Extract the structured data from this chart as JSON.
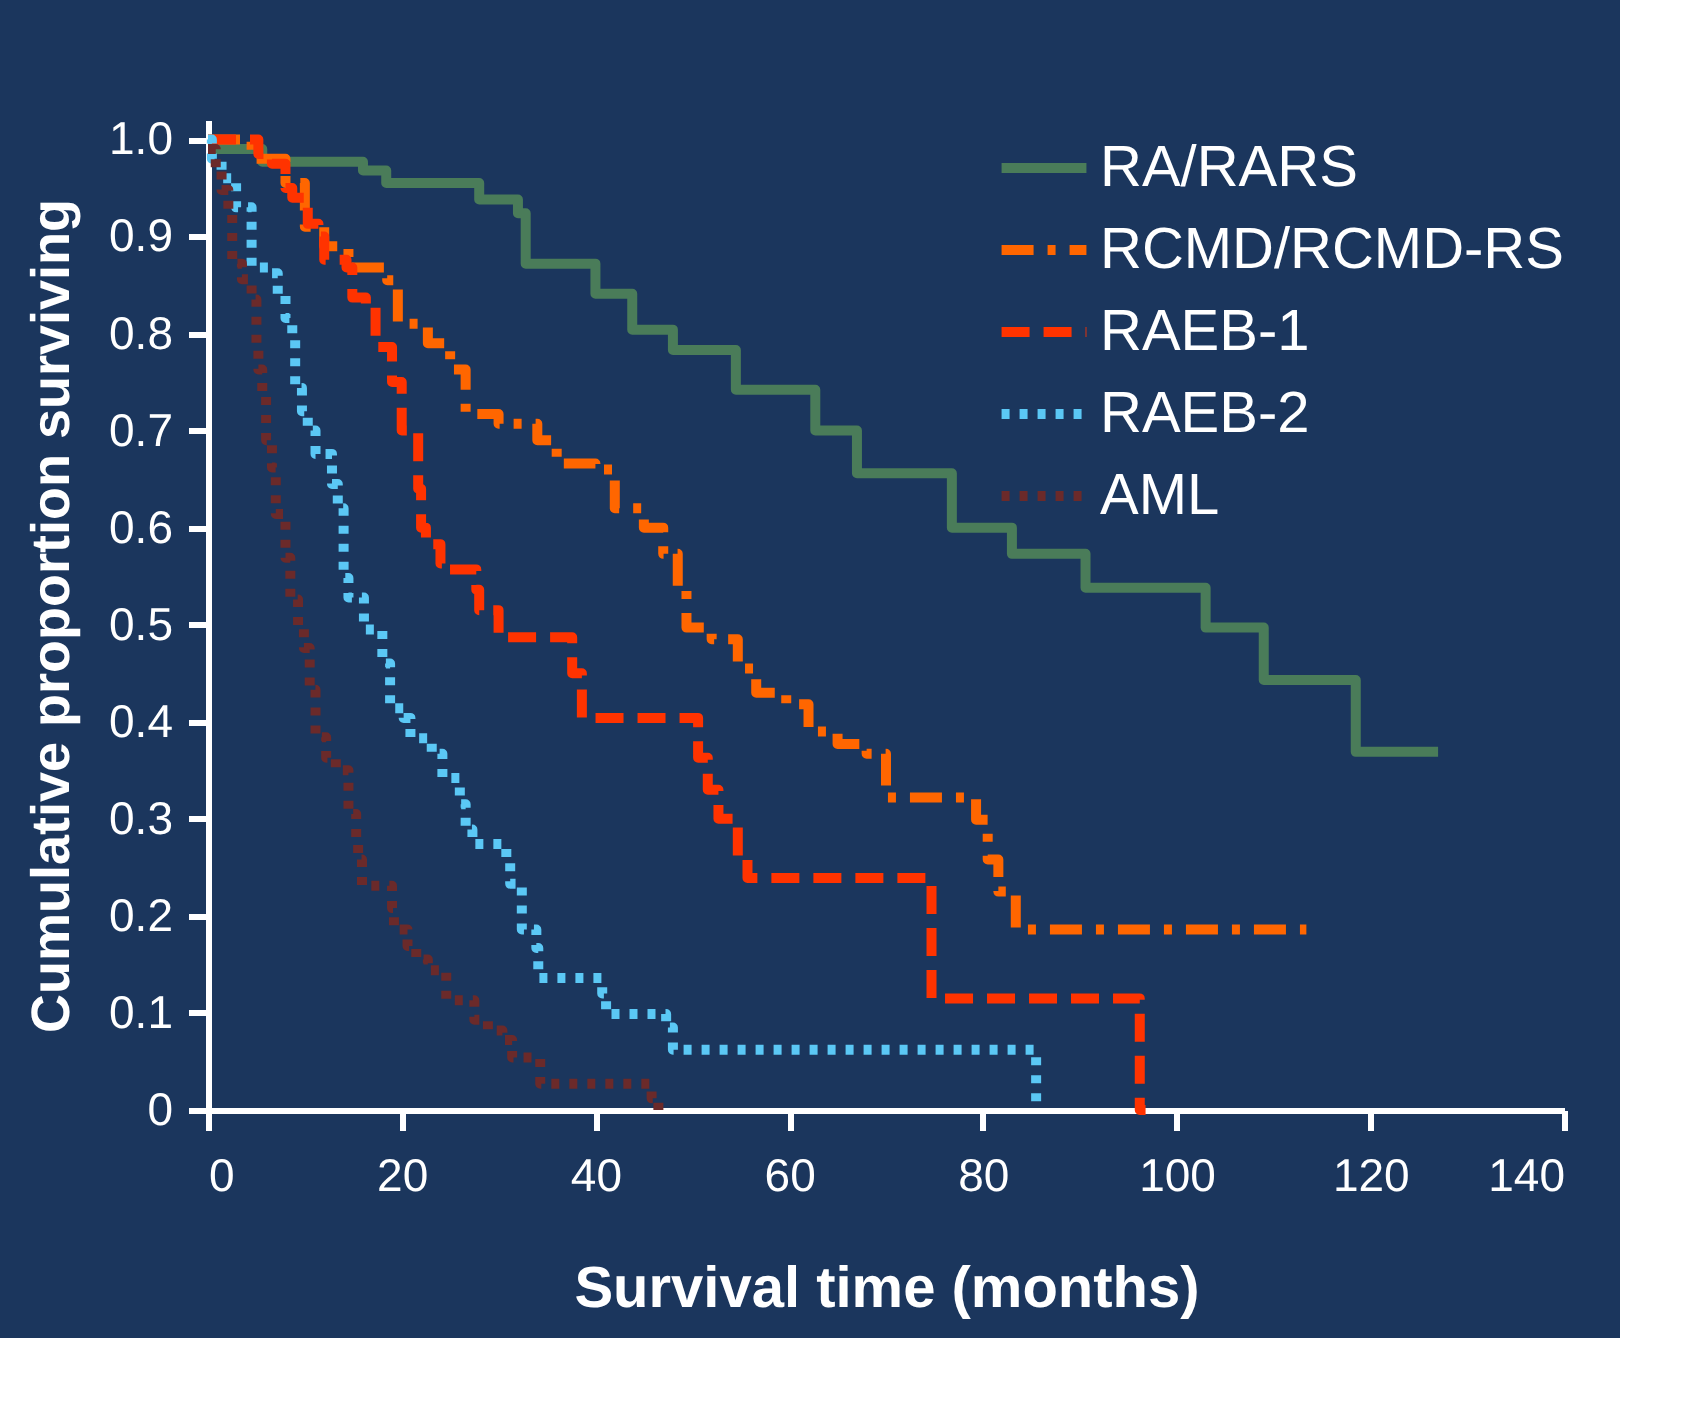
{
  "chart_data": {
    "type": "step",
    "xlabel": "Survival time (months)",
    "ylabel": "Cumulative proportion surviving",
    "xlim": [
      0,
      140
    ],
    "xticks": [
      0,
      20,
      40,
      60,
      80,
      100,
      120,
      140
    ],
    "ylim": [
      0,
      1.02
    ],
    "yticks": [
      {
        "value": 0,
        "label": "0"
      },
      0.1,
      0.2,
      0.3,
      0.4,
      0.5,
      0.6,
      0.7,
      0.8,
      0.9,
      {
        "value": 1,
        "label": "1.0"
      }
    ],
    "grid": false,
    "legend": "top right",
    "marker": "none",
    "series": [
      {
        "name": "RA/RARS",
        "color": "#4a7c59",
        "line_style": "solid",
        "x": [
          0,
          5.6,
          16,
          18.4,
          28,
          32,
          32.8,
          40,
          43.8,
          48,
          54.5,
          62.7,
          67,
          76.8,
          83,
          90.6,
          103,
          109,
          118.5,
          127
        ],
        "values": [
          0.99,
          0.977,
          0.968,
          0.955,
          0.938,
          0.924,
          0.872,
          0.841,
          0.804,
          0.783,
          0.742,
          0.7,
          0.656,
          0.6,
          0.573,
          0.538,
          0.497,
          0.443,
          0.369,
          0.369
        ]
      },
      {
        "name": "RCMD/RCMD-RS",
        "color": "#ff6600",
        "line_style": "dashdot",
        "x": [
          0,
          4.5,
          8,
          10,
          12,
          14.5,
          18.5,
          19.6,
          22.7,
          25,
          26.6,
          30,
          34,
          36,
          40,
          42,
          45,
          47,
          48.5,
          49.4,
          52,
          54.7,
          56.6,
          59.7,
          62,
          65,
          68,
          70,
          79.3,
          80.5,
          81.6,
          83.4,
          113.4
        ],
        "values": [
          1.0,
          0.98,
          0.955,
          0.91,
          0.89,
          0.868,
          0.855,
          0.81,
          0.79,
          0.763,
          0.717,
          0.707,
          0.69,
          0.666,
          0.66,
          0.62,
          0.6,
          0.573,
          0.54,
          0.497,
          0.485,
          0.455,
          0.43,
          0.418,
          0.39,
          0.377,
          0.367,
          0.322,
          0.299,
          0.258,
          0.225,
          0.186,
          0.186
        ]
      },
      {
        "name": "RAEB-1",
        "color": "#ff3300",
        "line_style": "dashed",
        "x": [
          0,
          5.2,
          6.6,
          8,
          8.7,
          10.3,
          11.4,
          12,
          14.3,
          14.9,
          16.3,
          17.3,
          19,
          20,
          21.7,
          22,
          22.5,
          24,
          24.8,
          27.7,
          28,
          30,
          37.6,
          38.6,
          50.6,
          51.6,
          52.7,
          54.7,
          55.7,
          74.7,
          96.2,
          96.8
        ],
        "values": [
          1.0,
          0.985,
          0.975,
          0.95,
          0.94,
          0.913,
          0.9,
          0.876,
          0.868,
          0.837,
          0.83,
          0.786,
          0.75,
          0.7,
          0.64,
          0.6,
          0.583,
          0.563,
          0.557,
          0.536,
          0.515,
          0.487,
          0.45,
          0.404,
          0.363,
          0.33,
          0.3,
          0.26,
          0.239,
          0.115,
          0,
          0
        ]
      },
      {
        "name": "RAEB-2",
        "color": "#5bc8f5",
        "line_style": "dotted",
        "x": [
          0,
          0.4,
          1.4,
          2.9,
          4.5,
          6.6,
          7.2,
          8,
          8.7,
          9,
          9.7,
          10.3,
          11.1,
          12.8,
          13.4,
          14,
          14.5,
          16.1,
          18,
          18.8,
          20.2,
          20.9,
          23.1,
          24.2,
          26,
          26.6,
          27.3,
          30.8,
          31.2,
          32.4,
          33.9,
          34.1,
          40.7,
          41.1,
          47.3,
          48,
          85.5
        ],
        "values": [
          1.0,
          0.98,
          0.96,
          0.93,
          0.868,
          0.862,
          0.84,
          0.816,
          0.794,
          0.744,
          0.72,
          0.7,
          0.676,
          0.645,
          0.62,
          0.548,
          0.528,
          0.495,
          0.46,
          0.414,
          0.404,
          0.383,
          0.367,
          0.342,
          0.315,
          0.289,
          0.274,
          0.258,
          0.233,
          0.186,
          0.167,
          0.136,
          0.12,
          0.099,
          0.085,
          0.062,
          0
        ]
      },
      {
        "name": "AML",
        "color": "#6b2a2a",
        "line_style": "dotted",
        "x": [
          0,
          0.8,
          1.4,
          2.1,
          2.5,
          3.5,
          4.5,
          5,
          5.2,
          5.6,
          6,
          6.6,
          7,
          8,
          8.5,
          9.3,
          9.9,
          10.5,
          11.1,
          12.2,
          13.2,
          14.5,
          15.3,
          15.5,
          15.9,
          19,
          19.2,
          20.6,
          21.5,
          22.7,
          24.6,
          27.5,
          28.9,
          30.4,
          31.4,
          34.3,
          45.8,
          46.5
        ],
        "values": [
          0.99,
          0.97,
          0.948,
          0.924,
          0.872,
          0.856,
          0.835,
          0.786,
          0.763,
          0.738,
          0.69,
          0.662,
          0.614,
          0.569,
          0.526,
          0.497,
          0.476,
          0.433,
          0.384,
          0.363,
          0.35,
          0.305,
          0.28,
          0.258,
          0.231,
          0.208,
          0.186,
          0.169,
          0.155,
          0.144,
          0.113,
          0.093,
          0.082,
          0.072,
          0.054,
          0.027,
          0.012,
          0
        ]
      }
    ]
  }
}
